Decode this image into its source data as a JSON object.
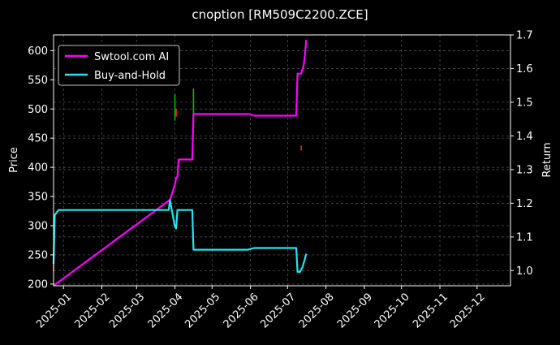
{
  "chart_data": {
    "type": "line",
    "title": "cnoption [RM509C2200.ZCE]",
    "ylabel": "Price",
    "y2label": "Return",
    "ylim": [
      197,
      627
    ],
    "y2lim": [
      0.955,
      1.7
    ],
    "yticks": [
      200,
      250,
      300,
      350,
      400,
      450,
      500,
      550,
      600
    ],
    "y2ticks": [
      1.0,
      1.1,
      1.2,
      1.3,
      1.4,
      1.5,
      1.6,
      1.7
    ],
    "y2tick_labels": [
      "1.0",
      "1.1",
      "1.2",
      "1.3",
      "1.4",
      "1.5",
      "1.6",
      "1.7"
    ],
    "xlim": [
      "2024-12-24",
      "2025-12-28"
    ],
    "xticks": [
      "2025-01",
      "2025-02",
      "2025-03",
      "2025-04",
      "2025-05",
      "2025-06",
      "2025-07",
      "2025-08",
      "2025-09",
      "2025-10",
      "2025-11",
      "2025-12"
    ],
    "grid": true,
    "legend_position": "top-left",
    "series": [
      {
        "name": "Swtool.com AI",
        "axis": "right",
        "color": "#ff00ff",
        "points": [
          [
            "2024-12-24",
            0.955
          ],
          [
            "2025-03-28",
            1.21
          ],
          [
            "2025-04-01",
            1.255
          ],
          [
            "2025-04-02",
            1.275
          ],
          [
            "2025-04-03",
            1.278
          ],
          [
            "2025-04-04",
            1.33
          ],
          [
            "2025-04-14",
            1.33
          ],
          [
            "2025-04-15",
            1.33
          ],
          [
            "2025-04-16",
            1.465
          ],
          [
            "2025-05-31",
            1.465
          ],
          [
            "2025-06-04",
            1.46
          ],
          [
            "2025-07-08",
            1.46
          ],
          [
            "2025-07-09",
            1.585
          ],
          [
            "2025-07-12",
            1.585
          ],
          [
            "2025-07-14",
            1.61
          ],
          [
            "2025-07-15",
            1.64
          ],
          [
            "2025-07-16",
            1.685
          ]
        ]
      },
      {
        "name": "Buy-and-Hold",
        "axis": "right",
        "color": "#22e5f0",
        "points": [
          [
            "2024-12-24",
            1.02
          ],
          [
            "2024-12-25",
            1.165
          ],
          [
            "2024-12-28",
            1.18
          ],
          [
            "2025-03-27",
            1.18
          ],
          [
            "2025-03-28",
            1.21
          ],
          [
            "2025-04-01",
            1.13
          ],
          [
            "2025-04-02",
            1.125
          ],
          [
            "2025-04-03",
            1.18
          ],
          [
            "2025-04-15",
            1.18
          ],
          [
            "2025-04-16",
            1.062
          ],
          [
            "2025-05-30",
            1.062
          ],
          [
            "2025-06-04",
            1.067
          ],
          [
            "2025-07-08",
            1.067
          ],
          [
            "2025-07-09",
            0.996
          ],
          [
            "2025-07-11",
            0.996
          ],
          [
            "2025-07-13",
            1.01
          ],
          [
            "2025-07-15",
            1.035
          ],
          [
            "2025-07-16",
            1.05
          ]
        ]
      }
    ],
    "candles": [
      {
        "date": "2024-12-24",
        "low": 222,
        "high": 245,
        "color": "#ff2020"
      },
      {
        "date": "2025-04-01",
        "low": 480,
        "high": 525,
        "color": "#00c000"
      },
      {
        "date": "2025-04-02",
        "low": 487,
        "high": 500,
        "color": "#ff2020"
      },
      {
        "date": "2025-04-16",
        "low": 490,
        "high": 535,
        "color": "#00c000"
      },
      {
        "date": "2025-07-12",
        "low": 429,
        "high": 437,
        "color": "#ff2020"
      }
    ]
  }
}
